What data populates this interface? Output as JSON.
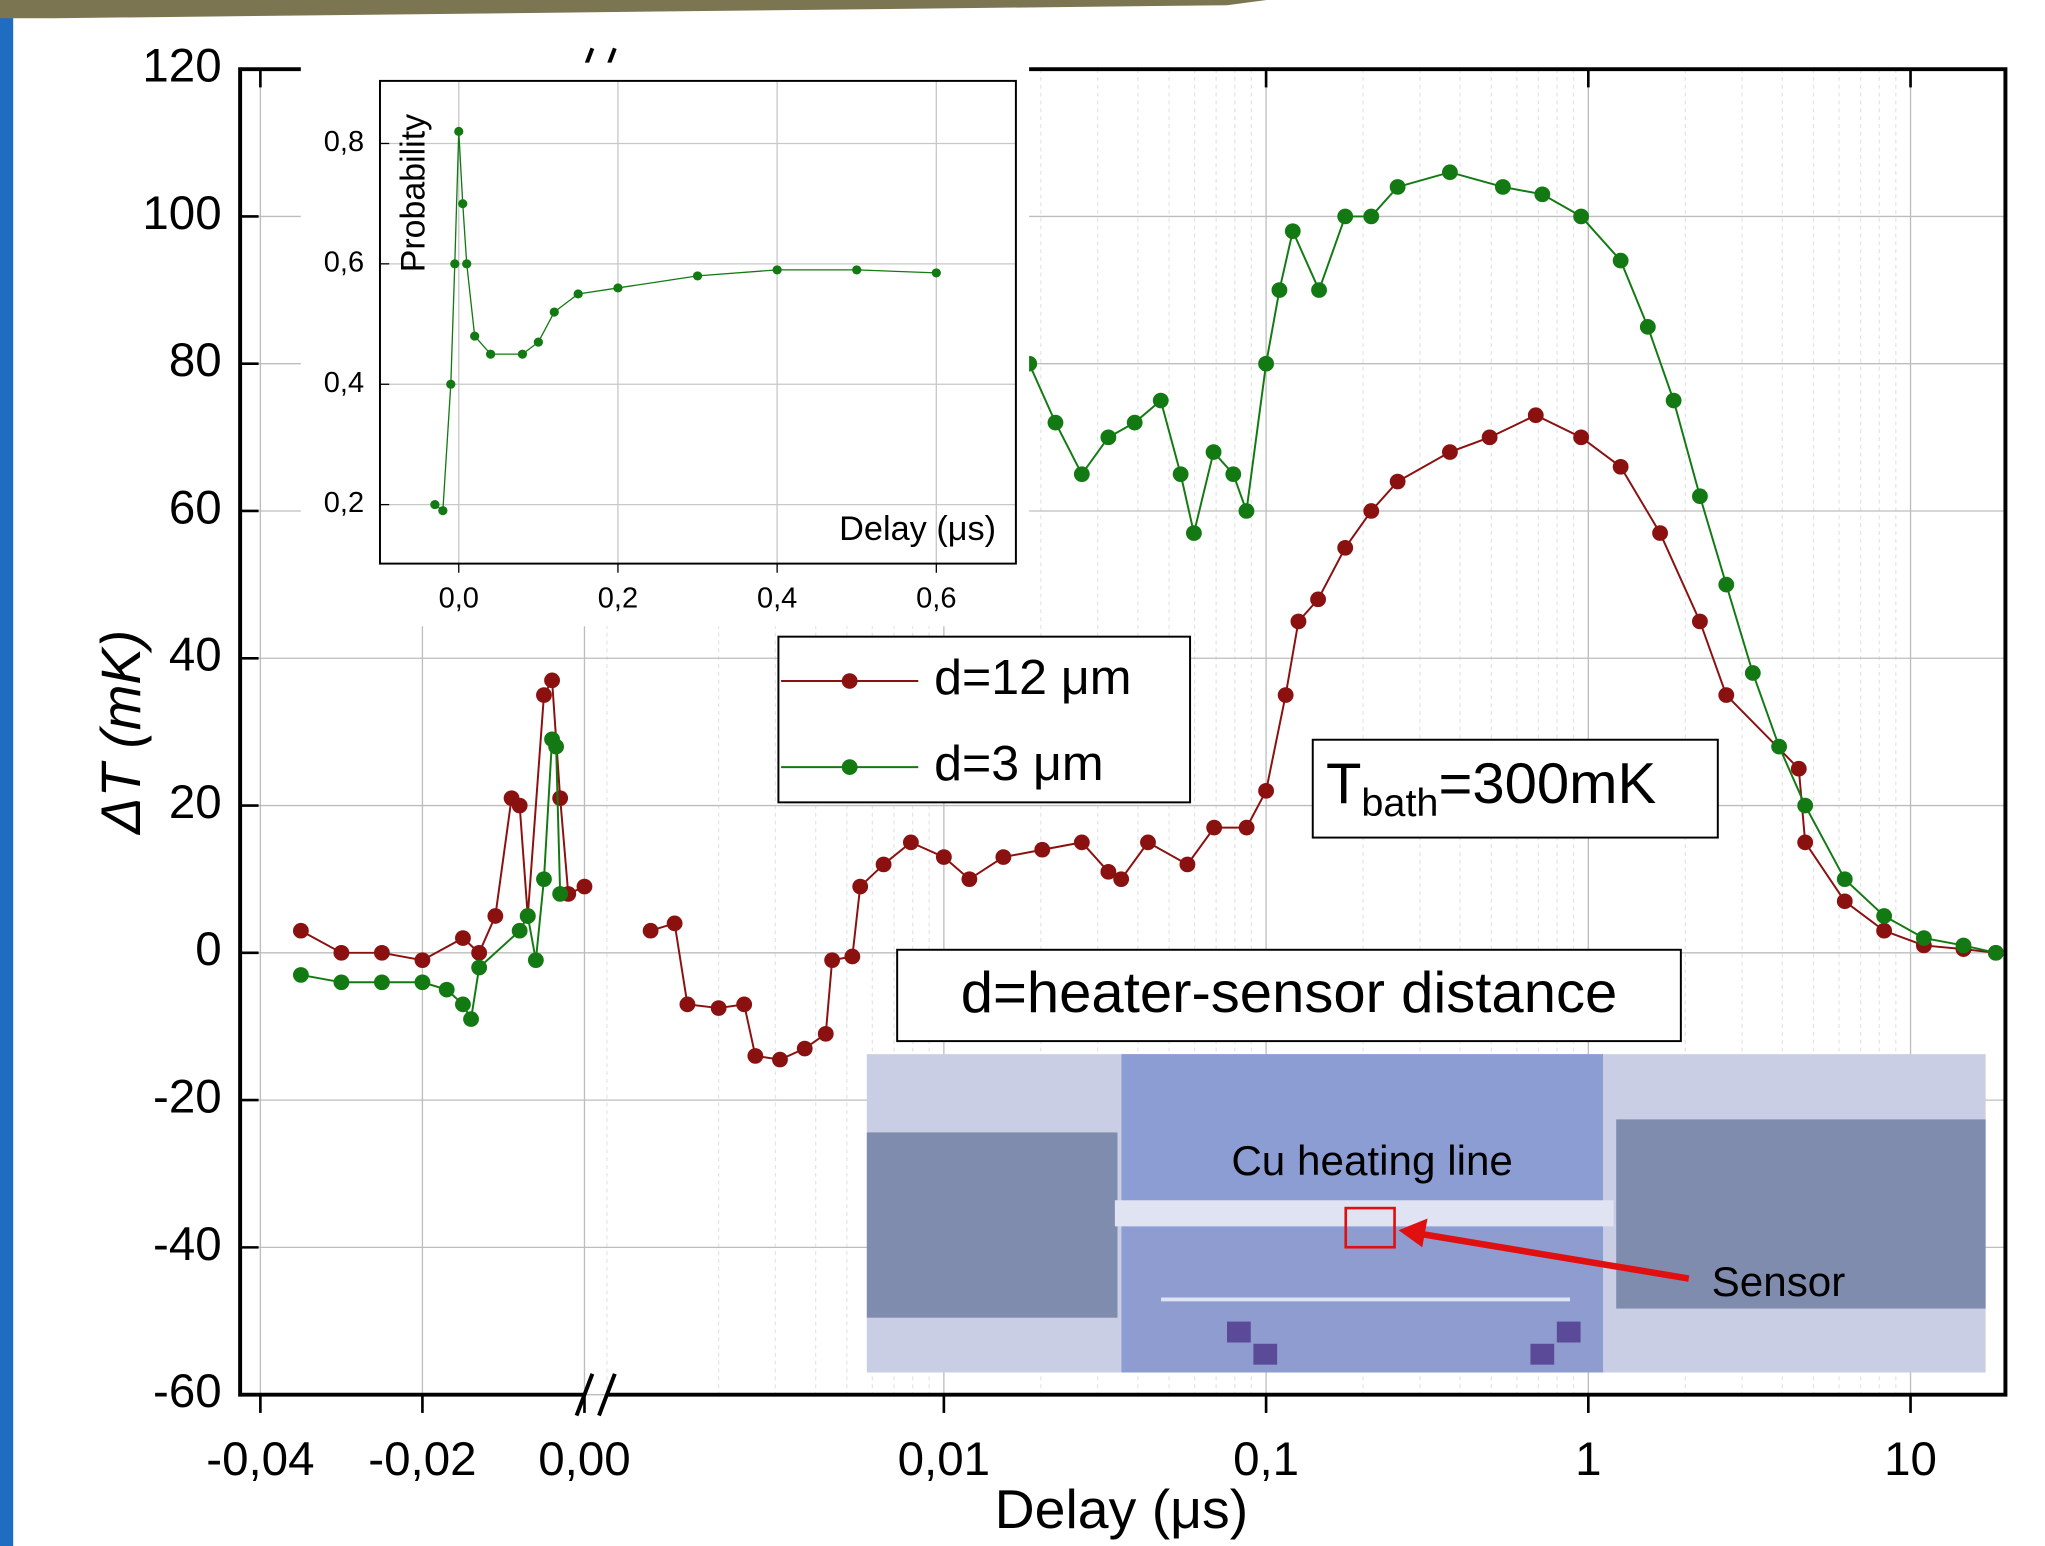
{
  "chart_data": [
    {
      "type": "line",
      "xlabel": "Delay (μs)",
      "ylabel": "ΔT (mK)",
      "ylim": [
        -60,
        120
      ],
      "yticks": [
        -60,
        -40,
        -20,
        0,
        20,
        40,
        60,
        80,
        100,
        120
      ],
      "xlim": [
        -0.0425,
        0.0
      ],
      "xticks": [
        {
          "value": -0.04,
          "label": "-0,04"
        },
        {
          "value": -0.02,
          "label": "-0,02"
        },
        {
          "value": 0.0,
          "label": "0,00"
        }
      ],
      "x2lim": [
        0.0009,
        19.7
      ],
      "x2log": true,
      "x2ticks": [
        {
          "value": 0.01,
          "label": "0,01"
        },
        {
          "value": 0.1,
          "label": "0,1"
        },
        1,
        10
      ],
      "grid": true,
      "series": [
        {
          "name": "d=12 μm",
          "color": "#8b1010",
          "x": [
            -0.035,
            -0.03,
            -0.025,
            -0.02,
            -0.015,
            -0.013,
            -0.011,
            -0.009,
            -0.008,
            -0.007,
            -0.005,
            -0.004,
            -0.003,
            -0.002,
            0.0,
            null,
            0.00123,
            0.00146,
            0.0016,
            0.002,
            0.0024,
            0.0026,
            0.0031,
            0.0037,
            0.0043,
            0.0045,
            0.0052,
            0.0055,
            0.0065,
            0.0079,
            0.01,
            0.012,
            0.0153,
            0.0202,
            0.0268,
            0.0324,
            0.0355,
            0.043,
            0.057,
            0.069,
            0.087,
            0.1,
            0.115,
            0.126,
            0.145,
            0.176,
            0.212,
            0.256,
            0.372,
            0.494,
            0.687,
            0.95,
            1.26,
            1.67,
            2.22,
            2.68,
            4.5,
            4.71,
            6.25,
            8.28,
            11.0,
            14.6,
            18.4
          ],
          "values": [
            3,
            0,
            0,
            -1,
            2,
            0,
            5,
            21,
            20,
            5,
            35,
            37,
            21,
            8,
            9,
            null,
            3,
            4,
            -7,
            -7.5,
            -7,
            -14,
            -14.5,
            -13,
            -11,
            -1,
            -0.5,
            9,
            12,
            15,
            13,
            10,
            13,
            14,
            15,
            11,
            10,
            15,
            12,
            17,
            17,
            22,
            35,
            45,
            48,
            55,
            60,
            64,
            68,
            70,
            73,
            70,
            66,
            57,
            45,
            35,
            25,
            15,
            7,
            3,
            1,
            0.5,
            0
          ]
        },
        {
          "name": "d=3 μm",
          "color": "#137a13",
          "x": [
            -0.035,
            -0.03,
            -0.025,
            -0.02,
            -0.017,
            -0.015,
            -0.014,
            -0.013,
            -0.008,
            -0.007,
            -0.006,
            -0.005,
            -0.004,
            -0.0035,
            -0.003,
            null,
            0.0184,
            0.0222,
            0.0268,
            0.0324,
            0.0391,
            0.0471,
            0.0543,
            0.0597,
            0.0687,
            0.0791,
            0.0869,
            0.1,
            0.11,
            0.121,
            0.146,
            0.176,
            0.212,
            0.256,
            0.372,
            0.543,
            0.72,
            0.95,
            1.26,
            1.53,
            1.84,
            2.22,
            2.68,
            3.24,
            3.91,
            4.71,
            6.25,
            8.28,
            11.0,
            14.6,
            18.4
          ],
          "values": [
            -3,
            -4,
            -4,
            -4,
            -5,
            -7,
            -9,
            -2,
            3,
            5,
            -1,
            10,
            29,
            28,
            8,
            null,
            80,
            72,
            65,
            70,
            72,
            75,
            65,
            57,
            68,
            65,
            60,
            80,
            90,
            98,
            90,
            100,
            100,
            104,
            106,
            104,
            103,
            100,
            94,
            85,
            75,
            62,
            50,
            38,
            28,
            20,
            10,
            5,
            2,
            1,
            0
          ]
        }
      ],
      "legend": "center",
      "annotations": {
        "t_bath": [
          "T",
          "bath",
          "=300mK"
        ],
        "distance": "d=heater-sensor distance",
        "heating_line": "Cu heating line",
        "sensor": "Sensor"
      }
    },
    {
      "type": "line",
      "xlabel": "Delay (μs)",
      "ylabel": "Probability",
      "xlim": [
        -0.099,
        0.7
      ],
      "xticks": [
        {
          "value": 0.0,
          "label": "0,0"
        },
        {
          "value": 0.2,
          "label": "0,2"
        },
        {
          "value": 0.4,
          "label": "0,4"
        },
        {
          "value": 0.6,
          "label": "0,6"
        }
      ],
      "ylim": [
        0.102,
        0.904
      ],
      "yticks": [
        {
          "value": 0.2,
          "label": "0,2"
        },
        {
          "value": 0.4,
          "label": "0,4"
        },
        {
          "value": 0.6,
          "label": "0,6"
        },
        {
          "value": 0.8,
          "label": "0,8"
        }
      ],
      "grid": true,
      "series": [
        {
          "color": "#137a13",
          "x": [
            -0.03,
            -0.02,
            -0.01,
            -0.005,
            0.0,
            0.005,
            0.01,
            0.02,
            0.04,
            0.08,
            0.1,
            0.12,
            0.15,
            0.2,
            0.3,
            0.4,
            0.5,
            0.6
          ],
          "values": [
            0.2,
            0.19,
            0.4,
            0.6,
            0.82,
            0.7,
            0.6,
            0.48,
            0.45,
            0.45,
            0.47,
            0.52,
            0.55,
            0.56,
            0.58,
            0.59,
            0.59,
            0.585
          ]
        }
      ]
    }
  ]
}
